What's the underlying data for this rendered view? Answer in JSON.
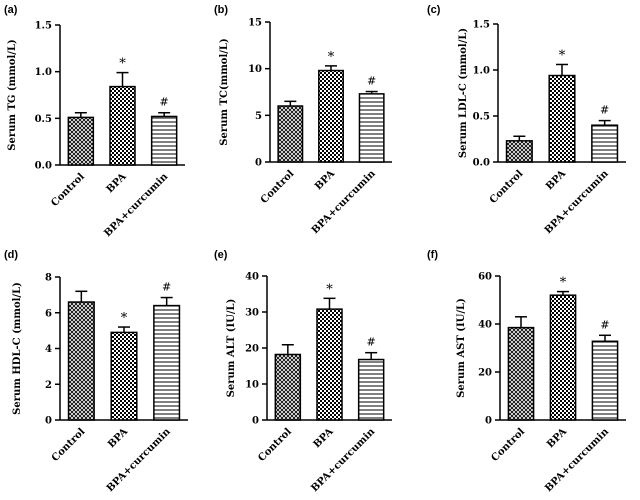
{
  "figure": {
    "background": "#ffffff",
    "ink": "#000000"
  },
  "chart_data": [
    {
      "panel": "(a)",
      "type": "bar",
      "ylabel": "Serum TG (mmol/L)",
      "ylim": [
        0,
        1.5
      ],
      "yticks": [
        "0.0",
        "0.5",
        "1.0",
        "1.5"
      ],
      "categories": [
        "Control",
        "BPA",
        "BPA+curcumin"
      ],
      "values": [
        0.51,
        0.84,
        0.52
      ],
      "errors": [
        0.05,
        0.15,
        0.04
      ],
      "annotations": [
        "",
        "*",
        "#"
      ],
      "fills": [
        "crosshatch",
        "checker",
        "horizontal-lines"
      ]
    },
    {
      "panel": "(b)",
      "type": "bar",
      "ylabel": "Serum TC(mmol/L)",
      "ylim": [
        0,
        15
      ],
      "yticks": [
        "0",
        "5",
        "10",
        "15"
      ],
      "categories": [
        "Control",
        "BPA",
        "BPA+curcumin"
      ],
      "values": [
        6.0,
        9.8,
        7.3
      ],
      "errors": [
        0.5,
        0.5,
        0.25
      ],
      "annotations": [
        "",
        "*",
        "#"
      ],
      "fills": [
        "crosshatch",
        "checker",
        "horizontal-lines"
      ]
    },
    {
      "panel": "(c)",
      "type": "bar",
      "ylabel": "Serum LDL-C (mmol/L)",
      "ylim": [
        0,
        1.5
      ],
      "yticks": [
        "0.0",
        "0.5",
        "1.0",
        "1.5"
      ],
      "categories": [
        "Control",
        "BPA",
        "BPA+curcumin"
      ],
      "values": [
        0.23,
        0.94,
        0.4
      ],
      "errors": [
        0.05,
        0.12,
        0.05
      ],
      "annotations": [
        "",
        "*",
        "#"
      ],
      "fills": [
        "crosshatch",
        "checker",
        "horizontal-lines"
      ]
    },
    {
      "panel": "(d)",
      "type": "bar",
      "ylabel": "Serum HDL-C (mmol/L)",
      "ylim": [
        0,
        8
      ],
      "yticks": [
        "0",
        "2",
        "4",
        "6",
        "8"
      ],
      "categories": [
        "Control",
        "BPA",
        "BPA+curcumin"
      ],
      "values": [
        6.6,
        4.9,
        6.4
      ],
      "errors": [
        0.6,
        0.3,
        0.45
      ],
      "annotations": [
        "",
        "*",
        "#"
      ],
      "fills": [
        "crosshatch",
        "checker",
        "horizontal-lines"
      ]
    },
    {
      "panel": "(e)",
      "type": "bar",
      "ylabel": "Serum ALT (IU/L)",
      "ylim": [
        0,
        40
      ],
      "yticks": [
        "0",
        "10",
        "20",
        "30",
        "40"
      ],
      "categories": [
        "Control",
        "BPA",
        "BPA+curcumin"
      ],
      "values": [
        18.2,
        30.8,
        16.8
      ],
      "errors": [
        2.7,
        3.0,
        1.9
      ],
      "annotations": [
        "",
        "*",
        "#"
      ],
      "fills": [
        "crosshatch",
        "checker",
        "horizontal-lines"
      ]
    },
    {
      "panel": "(f)",
      "type": "bar",
      "ylabel": "Serum AST (IU/L)",
      "ylim": [
        0,
        60
      ],
      "yticks": [
        "0",
        "20",
        "40",
        "60"
      ],
      "categories": [
        "Control",
        "BPA",
        "BPA+curcumin"
      ],
      "values": [
        38.5,
        52.0,
        32.8
      ],
      "errors": [
        4.5,
        1.5,
        2.5
      ],
      "annotations": [
        "",
        "*",
        "#"
      ],
      "fills": [
        "crosshatch",
        "checker",
        "horizontal-lines"
      ]
    }
  ]
}
